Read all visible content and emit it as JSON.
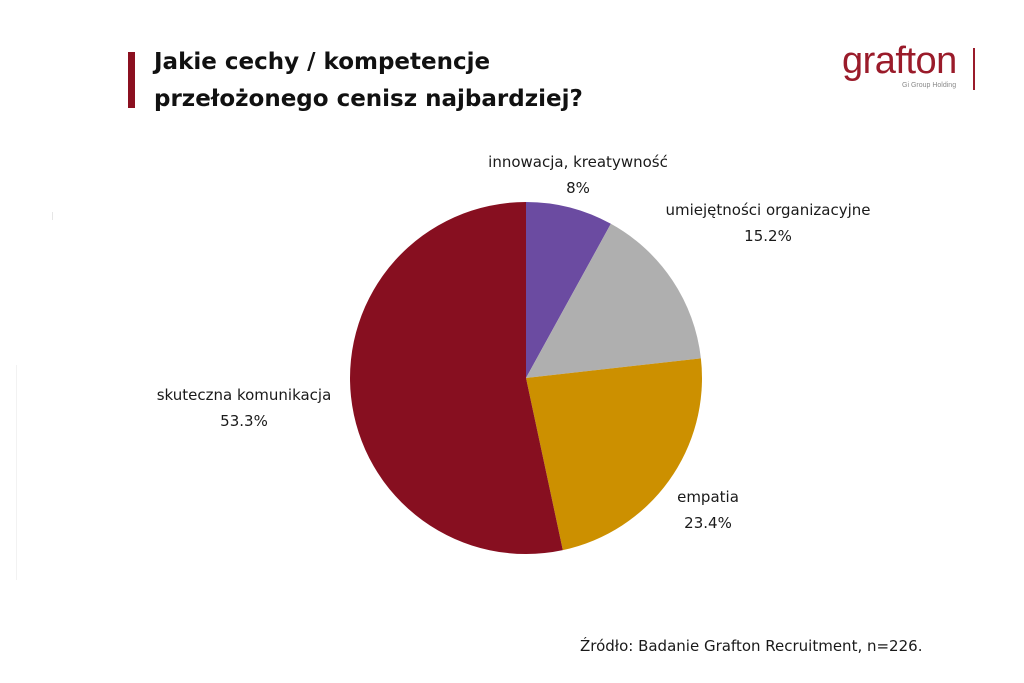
{
  "title": {
    "line1": "Jakie cechy / kompetencje",
    "line2": "przełożonego cenisz najbardziej?"
  },
  "logo": {
    "name": "grafton",
    "tagline": "Gi Group Holding",
    "color": "#9a1b2a"
  },
  "source": "Źródło: Badanie Grafton Recruitment, n=226.",
  "chart_data": {
    "type": "pie",
    "start_angle_deg": 0,
    "direction": "clockwise",
    "slices": [
      {
        "label": "innowacja, kreatywność",
        "value": 8,
        "value_label": "8%",
        "color": "#6b4ba1"
      },
      {
        "label": "umiejętności organizacyjne",
        "value": 15.2,
        "value_label": "15.2%",
        "color": "#afafaf"
      },
      {
        "label": "empatia",
        "value": 23.4,
        "value_label": "23.4%",
        "color": "#cc9000"
      },
      {
        "label": "skuteczna komunikacja",
        "value": 53.3,
        "value_label": "53.3%",
        "color": "#870f20"
      }
    ],
    "legend": "none"
  }
}
